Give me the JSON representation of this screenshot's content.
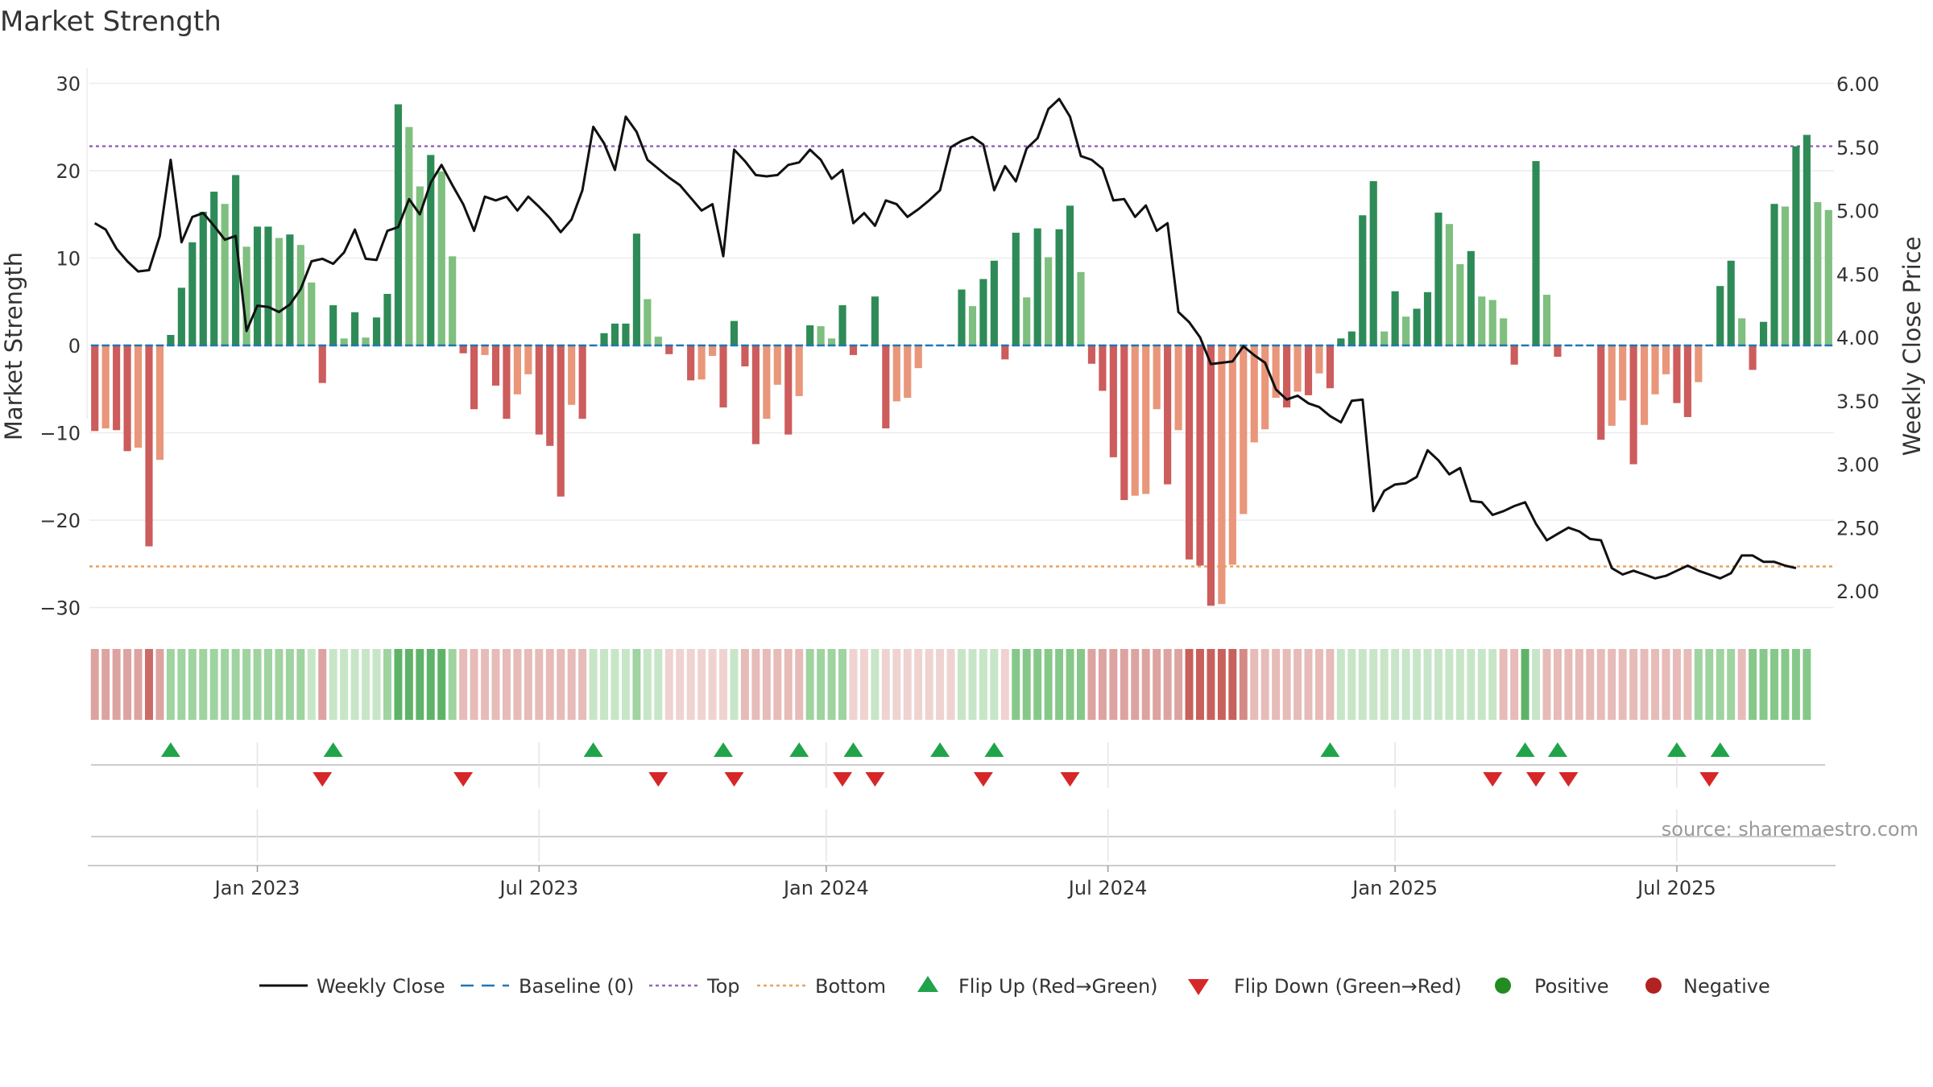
{
  "chart_data": {
    "type": "bar",
    "title": "Market Strength",
    "ylabel": "Market Strength",
    "y2label": "Weekly Close Price",
    "ylim": [
      -35,
      32
    ],
    "y2lim": [
      1.85,
      6.05
    ],
    "yticks": [
      30,
      20,
      10,
      0,
      -10,
      -20,
      -30
    ],
    "ytick_labels": [
      "30",
      "20",
      "10",
      "0",
      "−10",
      "−20",
      "−30"
    ],
    "y2ticks": [
      6.0,
      5.5,
      5.0,
      4.5,
      4.0,
      3.5,
      3.0,
      2.5,
      2.0
    ],
    "y2tick_labels": [
      "6.00",
      "5.50",
      "5.00",
      "4.50",
      "4.00",
      "3.50",
      "3.00",
      "2.50",
      "2.00"
    ],
    "start_index": 0,
    "x_ticks": [
      {
        "label": "Jan 2023",
        "index": 15
      },
      {
        "label": "Jul 2023",
        "index": 41
      },
      {
        "label": "Jan 2024",
        "index": 67.5
      },
      {
        "label": "Jul 2024",
        "index": 93.5
      },
      {
        "label": "Jan 2025",
        "index": 120
      },
      {
        "label": "Jul 2025",
        "index": 146
      }
    ],
    "top_line": 22.8,
    "bottom_line": -25.3,
    "baseline": 0,
    "colors": {
      "strong_green": "#2e8b57",
      "light_green": "#7fbf7f",
      "strong_red": "#cd5c5c",
      "light_red": "#e9967a",
      "line": "#111111",
      "baseline": "#1f77b4",
      "top": "#9467bd",
      "bottom": "#e8a35c",
      "flip_up": "#21a34a",
      "flip_down": "#d62728",
      "positive": "#228b22",
      "negative": "#b22222"
    },
    "strength": [
      -9.8,
      -9.5,
      -9.7,
      -12.1,
      -11.7,
      -23,
      -13.1,
      1.2,
      6.6,
      11.8,
      15.3,
      17.6,
      16.2,
      19.5,
      11.3,
      13.6,
      13.6,
      12.3,
      12.7,
      11.5,
      7.2,
      -4.3,
      4.6,
      0.8,
      3.8,
      0.9,
      3.2,
      5.9,
      27.6,
      25,
      18.2,
      21.8,
      19.9,
      10.2,
      -0.9,
      -7.3,
      -1.1,
      -4.6,
      -8.4,
      -5.6,
      -3.3,
      -10.2,
      -11.5,
      -17.3,
      -6.8,
      -8.4,
      0,
      1.4,
      2.5,
      2.5,
      12.8,
      5.3,
      1,
      -1,
      0,
      -4,
      -3.9,
      -1.2,
      -7.1,
      2.8,
      -2.4,
      -11.3,
      -8.4,
      -4.5,
      -10.2,
      -5.8,
      2.3,
      2.2,
      0.8,
      4.6,
      -1.1,
      0,
      5.6,
      -9.5,
      -6.4,
      -6,
      -2.6,
      0,
      0,
      0,
      6.4,
      4.5,
      7.6,
      9.7,
      -1.6,
      12.9,
      5.5,
      13.4,
      10.1,
      13.3,
      16,
      8.4,
      -2.1,
      -5.2,
      -12.8,
      -17.7,
      -17.2,
      -17,
      -7.3,
      -15.9,
      -9.7,
      -24.5,
      -25.2,
      -29.8,
      -29.6,
      -25.1,
      -19.3,
      -11.1,
      -9.6,
      -6,
      -7.1,
      -5.3,
      -5.7,
      -3.2,
      -4.9,
      0.8,
      1.6,
      14.9,
      18.8,
      1.6,
      6.2,
      3.3,
      4.2,
      6.1,
      15.2,
      13.9,
      9.3,
      10.8,
      5.6,
      5.2,
      3.1,
      -2.2,
      0,
      21.1,
      5.8,
      -1.3,
      0,
      0,
      0,
      -10.8,
      -9.2,
      -6.3,
      -13.6,
      -9.1,
      -5.6,
      -3.3,
      -6.6,
      -8.2,
      -4.2,
      0,
      6.8,
      9.7,
      3.1,
      -2.8,
      2.7,
      16.2,
      15.9,
      22.8,
      24.1,
      16.4,
      15.5
    ],
    "weekly_close": [
      4.9,
      4.85,
      4.7,
      4.6,
      4.52,
      4.53,
      4.8,
      5.4,
      4.75,
      4.95,
      4.98,
      4.88,
      4.77,
      4.8,
      4.05,
      4.25,
      4.24,
      4.2,
      4.26,
      4.38,
      4.6,
      4.62,
      4.58,
      4.67,
      4.85,
      4.62,
      4.61,
      4.84,
      4.87,
      5.09,
      4.97,
      5.22,
      5.36,
      5.2,
      5.05,
      4.84,
      5.11,
      5.08,
      5.11,
      5.0,
      5.11,
      5.03,
      4.94,
      4.83,
      4.93,
      5.16,
      5.66,
      5.53,
      5.32,
      5.74,
      5.62,
      5.4,
      5.33,
      5.26,
      5.2,
      5.1,
      5.0,
      5.05,
      4.64,
      5.48,
      5.39,
      5.28,
      5.27,
      5.28,
      5.36,
      5.38,
      5.48,
      5.4,
      5.25,
      5.32,
      4.9,
      4.98,
      4.88,
      5.08,
      5.05,
      4.95,
      5.01,
      5.08,
      5.16,
      5.5,
      5.55,
      5.58,
      5.52,
      5.16,
      5.35,
      5.23,
      5.49,
      5.57,
      5.8,
      5.88,
      5.74,
      5.43,
      5.4,
      5.33,
      5.08,
      5.09,
      4.95,
      5.04,
      4.84,
      4.9,
      4.2,
      4.12,
      4.0,
      3.79,
      3.8,
      3.81,
      3.93,
      3.86,
      3.8,
      3.59,
      3.51,
      3.54,
      3.48,
      3.45,
      3.38,
      3.33,
      3.5,
      3.51,
      2.63,
      2.79,
      2.84,
      2.85,
      2.9,
      3.11,
      3.03,
      2.92,
      2.97,
      2.71,
      2.7,
      2.6,
      2.63,
      2.67,
      2.7,
      2.53,
      2.4,
      2.45,
      2.5,
      2.47,
      2.41,
      2.4,
      2.18,
      2.13,
      2.16,
      2.13,
      2.1,
      2.12,
      2.16,
      2.2,
      2.16,
      2.13,
      2.1,
      2.14,
      2.28,
      2.28,
      2.23,
      2.23,
      2.2,
      2.18
    ],
    "strip_levels": [
      -3,
      -3,
      -3,
      -3,
      -3,
      -5,
      -3,
      2,
      2,
      2,
      2,
      2,
      2,
      2,
      2,
      2,
      2,
      2,
      2,
      2,
      1,
      -3,
      1,
      1,
      1,
      1,
      1,
      2,
      4,
      4,
      4,
      4,
      4,
      2,
      -2,
      -2,
      -2,
      -2,
      -2,
      -2,
      -2,
      -2,
      -2,
      -2,
      -2,
      -2,
      1,
      1,
      1,
      1,
      2,
      1,
      1,
      -1,
      -1,
      -1,
      -1,
      -1,
      -1,
      1,
      -2,
      -2,
      -2,
      -2,
      -2,
      -2,
      2,
      2,
      2,
      2,
      -1,
      -1,
      1,
      -1,
      -1,
      -1,
      -1,
      -1,
      -1,
      -1,
      1,
      1,
      1,
      1,
      -1,
      3,
      3,
      3,
      3,
      3,
      3,
      3,
      -3,
      -3,
      -3,
      -3,
      -3,
      -3,
      -3,
      -3,
      -3,
      -6,
      -6,
      -6,
      -6,
      -6,
      -4,
      -2,
      -2,
      -2,
      -2,
      -2,
      -2,
      -2,
      -2,
      1,
      1,
      1,
      1,
      1,
      1,
      1,
      1,
      1,
      1,
      1,
      1,
      1,
      1,
      1,
      -2,
      -2,
      4,
      1,
      -2,
      -2,
      -2,
      -2,
      -2,
      -2,
      -2,
      -2,
      -2,
      -2,
      -2,
      -2,
      -2,
      -2,
      2,
      2,
      2,
      2,
      -2,
      3,
      3,
      3,
      3,
      3,
      3
    ],
    "flips_up": [
      7,
      22,
      46,
      58,
      65,
      70,
      78,
      83,
      114,
      132,
      135,
      146,
      150
    ],
    "flips_down": [
      21,
      34,
      52,
      59,
      69,
      72,
      82,
      90,
      129,
      133,
      136,
      149
    ],
    "source": "source: sharemaestro.com",
    "legend": [
      {
        "label": "Weekly Close",
        "kind": "solid-line"
      },
      {
        "label": "Baseline (0)",
        "kind": "dash-line"
      },
      {
        "label": "Top",
        "kind": "dot-line-purple"
      },
      {
        "label": "Bottom",
        "kind": "dot-line-orange"
      },
      {
        "label": "Flip Up (Red→Green)",
        "kind": "triangle-up"
      },
      {
        "label": "Flip Down (Green→Red)",
        "kind": "triangle-down"
      },
      {
        "label": "Positive",
        "kind": "circle-green"
      },
      {
        "label": "Negative",
        "kind": "circle-red"
      }
    ]
  }
}
